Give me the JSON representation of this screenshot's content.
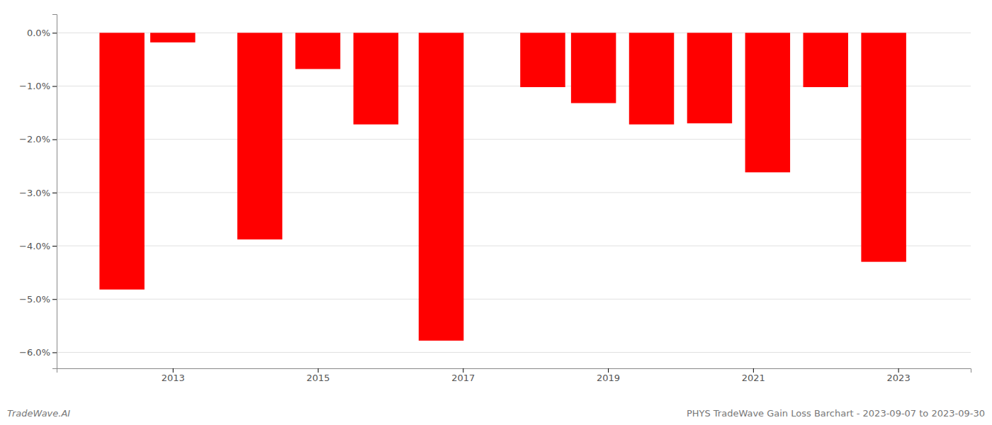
{
  "chart_data": {
    "type": "bar",
    "title": "PHYS TradeWave Gain Loss Barchart - 2023-09-07 to 2023-09-30",
    "annotations": [
      "TradeWave.AI"
    ],
    "x": [
      2012.3,
      2013.0,
      2014.2,
      2015.0,
      2015.8,
      2016.7,
      2018.1,
      2018.8,
      2019.6,
      2020.4,
      2021.2,
      2022.0,
      2022.8
    ],
    "values": [
      -4.82,
      -0.18,
      -3.88,
      -0.68,
      -1.72,
      -5.78,
      -1.02,
      -1.32,
      -1.72,
      -1.7,
      -2.62,
      -1.02,
      -4.3
    ],
    "color": "#ff0000",
    "xlim": [
      2011.4,
      2024.0
    ],
    "xticks": [
      2013,
      2015,
      2017,
      2019,
      2021,
      2023
    ],
    "ylim": [
      -6.3,
      0.35
    ],
    "yticks": [
      {
        "value": 0.0,
        "label": "0.0%"
      },
      {
        "value": -1.0,
        "label": "−1.0%"
      },
      {
        "value": -2.0,
        "label": "−2.0%"
      },
      {
        "value": -3.0,
        "label": "−3.0%"
      },
      {
        "value": -4.0,
        "label": "−4.0%"
      },
      {
        "value": -5.0,
        "label": "−5.0%"
      },
      {
        "value": -6.0,
        "label": "−6.0%"
      }
    ],
    "grid": true
  }
}
